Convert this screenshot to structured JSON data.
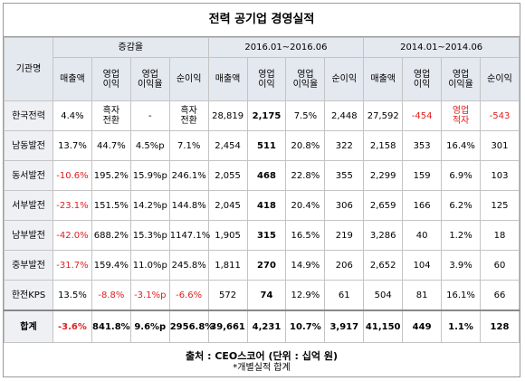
{
  "title": "전력 공기업 경영실적",
  "table": {
    "group_headers": [
      "기관명",
      "증감율",
      "2016.01~2016.06",
      "2014.01~2014.06"
    ],
    "column_headers": [
      "매출액",
      "영업\n이익",
      "영업\n이익율",
      "순이익",
      "매출액",
      "영업\n이익",
      "영업\n이익율",
      "순이익",
      "매출액",
      "영업\n이익",
      "영업\n이익율",
      "순이익"
    ],
    "rows": [
      [
        "한국전력",
        "4.4%",
        "흑자\n전환",
        "-",
        "흑자\n전환",
        "28,819",
        "2,175",
        "7.5%",
        "2,448",
        "27,592",
        "-454",
        "영업\n적자",
        "-543"
      ],
      [
        "남동발전",
        "13.7%",
        "44.7%",
        "4.5%p",
        "7.1%",
        "2,454",
        "511",
        "20.8%",
        "322",
        "2,158",
        "353",
        "16.4%",
        "301"
      ],
      [
        "동서발전",
        "-10.6%",
        "195.2%",
        "15.9%p",
        "246.1%",
        "2,055",
        "468",
        "22.8%",
        "355",
        "2,299",
        "159",
        "6.9%",
        "103"
      ],
      [
        "서부발전",
        "-23.1%",
        "151.5%",
        "14.2%p",
        "144.8%",
        "2,045",
        "418",
        "20.4%",
        "306",
        "2,659",
        "166",
        "6.2%",
        "125"
      ],
      [
        "남부발전",
        "-42.0%",
        "688.2%",
        "15.3%p",
        "1147.1%",
        "1,905",
        "315",
        "16.5%",
        "219",
        "3,286",
        "40",
        "1.2%",
        "18"
      ],
      [
        "중부발전",
        "-31.7%",
        "159.4%",
        "11.0%p",
        "245.8%",
        "1,811",
        "270",
        "14.9%",
        "206",
        "2,652",
        "104",
        "3.9%",
        "60"
      ],
      [
        "한전KPS",
        "13.5%",
        "-8.8%",
        "-3.1%p",
        "-6.6%",
        "572",
        "74",
        "12.9%",
        "61",
        "504",
        "81",
        "16.1%",
        "66"
      ],
      [
        "합계",
        "-3.6%",
        "841.8%",
        "9.6%p",
        "2956.8%",
        "39,661",
        "4,231",
        "10.7%",
        "3,917",
        "41,150",
        "449",
        "1.1%",
        "128"
      ]
    ]
  },
  "footer": {
    "source": "출처 : CEO스코어 (단위 : 십억 원)",
    "note": "*개별실적 합계"
  }
}
